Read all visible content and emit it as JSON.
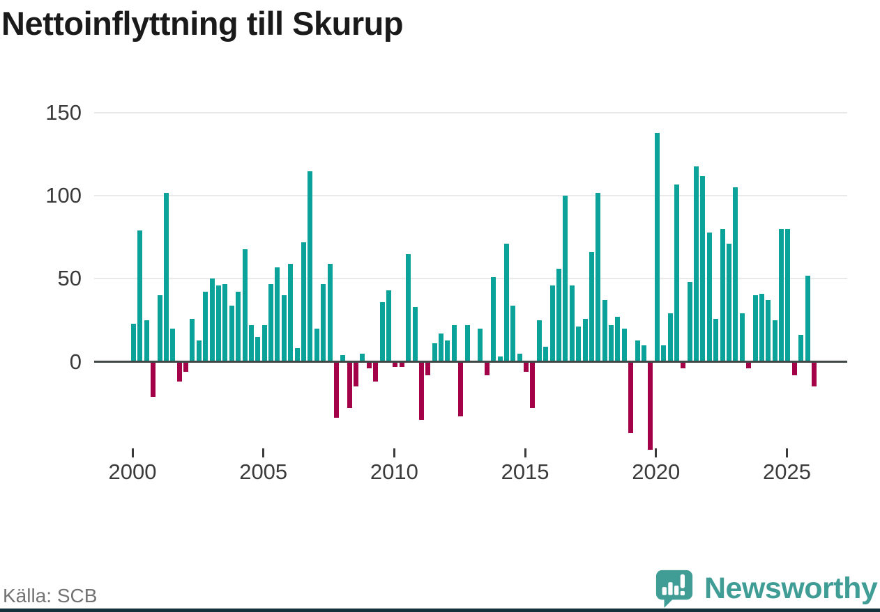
{
  "title": "Nettoinflyttning till Skurup",
  "footer": {
    "source": "Källa: SCB",
    "brand": "Newsworthy"
  },
  "colors": {
    "positive": "#0ba29a",
    "negative": "#a30248",
    "brand": "#3f9d96",
    "axis_line": "#3f4747",
    "gridline": "#e9e9e9",
    "tick_text": "#3a3a3a",
    "bottom_band": "#14303a"
  },
  "chart_data": {
    "type": "bar",
    "title": "Nettoinflyttning till Skurup",
    "xlabel": "",
    "ylabel": "",
    "grid": "horizontal",
    "legend": "none",
    "yticks": [
      0,
      50,
      100,
      150
    ],
    "xticks": [
      "2000",
      "2005",
      "2010",
      "2015",
      "2020",
      "2025"
    ],
    "ylim": [
      -60,
      155
    ],
    "positive_color": "#0ba29a",
    "negative_color": "#a30248",
    "categories": [
      "2000 Q1",
      "2000 Q2",
      "2000 Q3",
      "2000 Q4",
      "2001 Q1",
      "2001 Q2",
      "2001 Q3",
      "2001 Q4",
      "2002 Q1",
      "2002 Q2",
      "2002 Q3",
      "2002 Q4",
      "2003 Q1",
      "2003 Q2",
      "2003 Q3",
      "2003 Q4",
      "2004 Q1",
      "2004 Q2",
      "2004 Q3",
      "2004 Q4",
      "2005 Q1",
      "2005 Q2",
      "2005 Q3",
      "2005 Q4",
      "2006 Q1",
      "2006 Q2",
      "2006 Q3",
      "2006 Q4",
      "2007 Q1",
      "2007 Q2",
      "2007 Q3",
      "2007 Q4",
      "2008 Q1",
      "2008 Q2",
      "2008 Q3",
      "2008 Q4",
      "2009 Q1",
      "2009 Q2",
      "2009 Q3",
      "2009 Q4",
      "2010 Q1",
      "2010 Q2",
      "2010 Q3",
      "2010 Q4",
      "2011 Q1",
      "2011 Q2",
      "2011 Q3",
      "2011 Q4",
      "2012 Q1",
      "2012 Q2",
      "2012 Q3",
      "2012 Q4",
      "2013 Q1",
      "2013 Q2",
      "2013 Q3",
      "2013 Q4",
      "2014 Q1",
      "2014 Q2",
      "2014 Q3",
      "2014 Q4",
      "2015 Q1",
      "2015 Q2",
      "2015 Q3",
      "2015 Q4",
      "2016 Q1",
      "2016 Q2",
      "2016 Q3",
      "2016 Q4",
      "2017 Q1",
      "2017 Q2",
      "2017 Q3",
      "2017 Q4",
      "2018 Q1",
      "2018 Q2",
      "2018 Q3",
      "2018 Q4",
      "2019 Q1",
      "2019 Q2",
      "2019 Q3",
      "2019 Q4",
      "2020 Q1",
      "2020 Q2",
      "2020 Q3",
      "2020 Q4",
      "2021 Q1",
      "2021 Q2",
      "2021 Q3",
      "2021 Q4",
      "2022 Q1",
      "2022 Q2",
      "2022 Q3",
      "2022 Q4",
      "2023 Q1",
      "2023 Q2",
      "2023 Q3",
      "2023 Q4",
      "2024 Q1",
      "2024 Q2",
      "2024 Q3",
      "2024 Q4",
      "2025 Q1",
      "2025 Q2",
      "2025 Q3",
      "2025 Q4",
      "2026 Q1"
    ],
    "values": [
      23,
      79,
      25,
      -21,
      40,
      102,
      20,
      -12,
      -6,
      26,
      13,
      42,
      50,
      46,
      47,
      34,
      42,
      68,
      22,
      15,
      22,
      47,
      57,
      40,
      59,
      8,
      72,
      115,
      20,
      47,
      59,
      -34,
      4,
      -28,
      -15,
      5,
      -4,
      -12,
      36,
      43,
      -3,
      -3,
      65,
      33,
      -35,
      -8,
      11,
      17,
      13,
      22,
      -33,
      22,
      0,
      20,
      -8,
      51,
      3,
      71,
      34,
      5,
      -6,
      -28,
      25,
      9,
      46,
      56,
      100,
      46,
      21,
      26,
      66,
      102,
      37,
      22,
      27,
      20,
      -43,
      13,
      10,
      -53,
      138,
      10,
      29,
      107,
      -4,
      48,
      118,
      112,
      78,
      26,
      80,
      71,
      105,
      29,
      -4,
      40,
      41,
      37,
      25,
      80,
      80,
      -8,
      16,
      52,
      -15
    ]
  }
}
